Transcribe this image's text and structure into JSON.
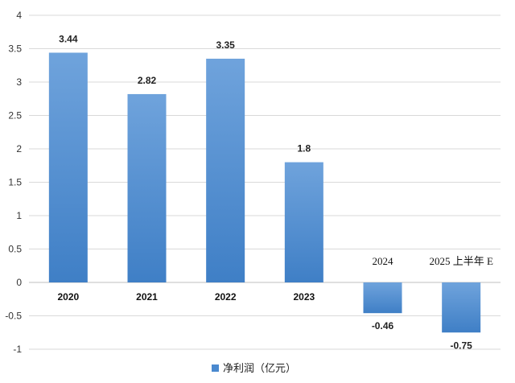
{
  "chart_data": {
    "type": "bar",
    "categories": [
      "2020",
      "2021",
      "2022",
      "2023",
      "2024",
      "2025上半年E"
    ],
    "category_labels": [
      "2020",
      "2021",
      "2022",
      "2023",
      "2024",
      "2025 上半年 E"
    ],
    "series": [
      {
        "name": "净利润（亿元）",
        "values": [
          3.44,
          2.82,
          3.35,
          1.8,
          -0.46,
          -0.75
        ]
      }
    ],
    "data_labels": [
      "3.44",
      "2.82",
      "3.35",
      "1.8",
      "-0.46",
      "-0.75"
    ],
    "ylim": [
      -1,
      4
    ],
    "yticks": [
      -1,
      -0.5,
      0,
      0.5,
      1,
      1.5,
      2,
      2.5,
      3,
      3.5,
      4
    ],
    "ytick_labels": [
      "-1",
      "-0.5",
      "0",
      "0.5",
      "1",
      "1.5",
      "2",
      "2.5",
      "3",
      "3.5",
      "4"
    ],
    "grid": true,
    "legend_position": "bottom",
    "colors": {
      "bar_top": "#6fa3dc",
      "bar_bottom": "#3f7fc6",
      "grid": "#d9d9d9",
      "axis": "#bfbfbf"
    }
  }
}
